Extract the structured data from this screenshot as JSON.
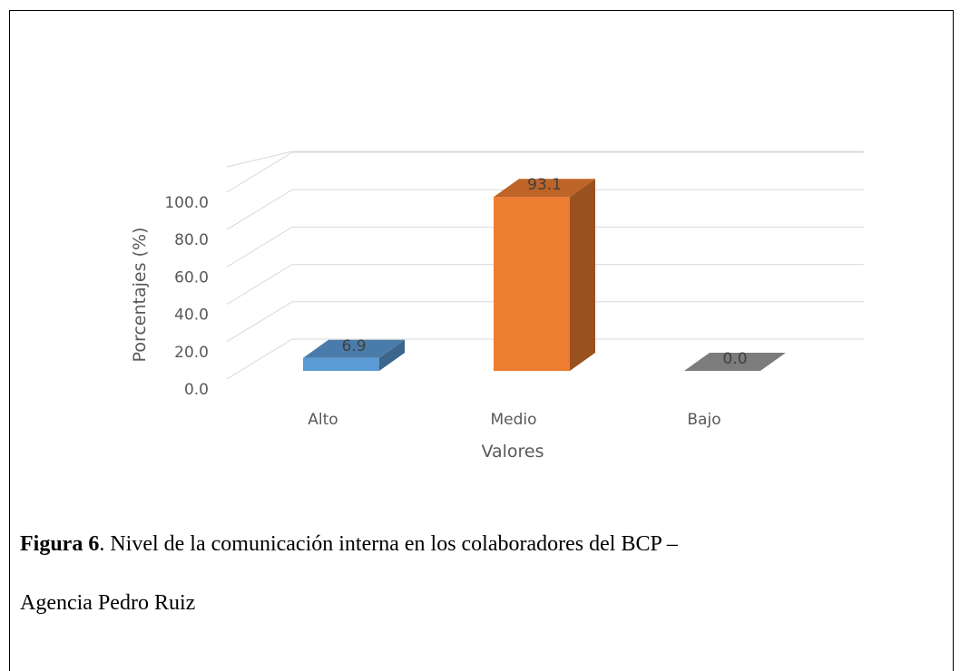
{
  "chart_data": {
    "type": "bar3d",
    "categories": [
      "Alto",
      "Medio",
      "Bajo"
    ],
    "values": [
      6.9,
      93.1,
      0.0
    ],
    "value_labels": [
      "6.9",
      "93.1",
      "0.0"
    ],
    "colors": [
      "#5b9bd5",
      "#ed7d31",
      "#a5a5a5"
    ],
    "ylim": [
      0,
      100
    ],
    "yticks": [
      {
        "value": 0,
        "label": "0.0"
      },
      {
        "value": 20,
        "label": "20.0"
      },
      {
        "value": 40,
        "label": "40.0"
      },
      {
        "value": 60,
        "label": "60.0"
      },
      {
        "value": 80,
        "label": "80.0"
      },
      {
        "value": 100,
        "label": "100.0"
      }
    ],
    "ylabel": "Porcentajes (%)",
    "xlabel": "Valores",
    "grid": true
  },
  "caption": {
    "label": "Figura 6",
    "text": ". Nivel de la comunicación interna en los colaboradores del BCP –",
    "text2": "Agencia Pedro Ruiz"
  }
}
